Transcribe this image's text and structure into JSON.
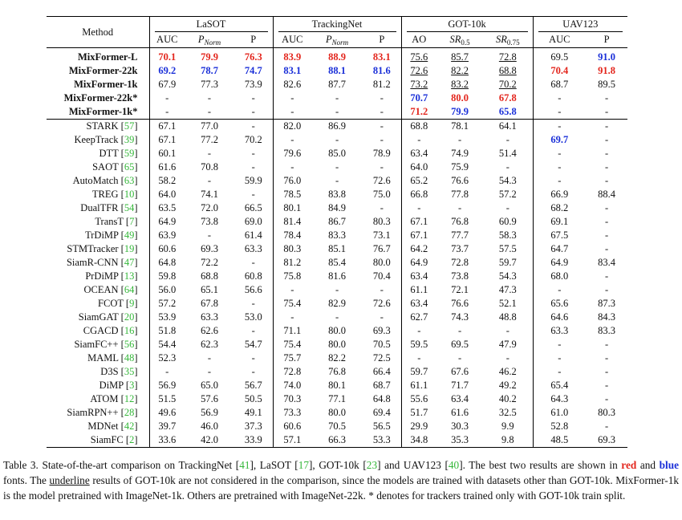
{
  "header": {
    "method": "Method",
    "groups": [
      "LaSOT",
      "TrackingNet",
      "GOT-10k",
      "UAV123"
    ],
    "lasot_cols": [
      "AUC",
      "P",
      "Norm",
      "P"
    ],
    "trackingnet_cols": [
      "AUC",
      "P",
      "Norm",
      "P"
    ],
    "got_cols": [
      "AO",
      "SR",
      "0.5",
      "SR",
      "0.75"
    ],
    "uav_cols": [
      "AUC",
      "P"
    ]
  },
  "rows": [
    {
      "name": "MixFormer-L",
      "cite": "",
      "vals": [
        "70.1",
        "79.9",
        "76.3",
        "83.9",
        "88.9",
        "83.1",
        "75.6",
        "85.7",
        "72.8",
        "69.5",
        "91.0"
      ],
      "st": [
        "r",
        "r",
        "r",
        "r",
        "r",
        "r",
        "u",
        "u",
        "u",
        "",
        "b"
      ]
    },
    {
      "name": "MixFormer-22k",
      "cite": "",
      "vals": [
        "69.2",
        "78.7",
        "74.7",
        "83.1",
        "88.1",
        "81.6",
        "72.6",
        "82.2",
        "68.8",
        "70.4",
        "91.8"
      ],
      "st": [
        "b",
        "b",
        "b",
        "b",
        "b",
        "b",
        "u",
        "u",
        "u",
        "r",
        "r"
      ]
    },
    {
      "name": "MixFormer-1k",
      "cite": "",
      "vals": [
        "67.9",
        "77.3",
        "73.9",
        "82.6",
        "87.7",
        "81.2",
        "73.2",
        "83.2",
        "70.2",
        "68.7",
        "89.5"
      ],
      "st": [
        "",
        "",
        "",
        "",
        "",
        "",
        "u",
        "u",
        "u",
        "",
        ""
      ]
    },
    {
      "name": "MixFormer-22k*",
      "cite": "",
      "vals": [
        "-",
        "-",
        "-",
        "-",
        "-",
        "-",
        "70.7",
        "80.0",
        "67.8",
        "-",
        "-"
      ],
      "st": [
        "",
        "",
        "",
        "",
        "",
        "",
        "b",
        "r",
        "r",
        "",
        ""
      ]
    },
    {
      "name": "MixFormer-1k*",
      "cite": "",
      "vals": [
        "-",
        "-",
        "-",
        "-",
        "-",
        "-",
        "71.2",
        "79.9",
        "65.8",
        "-",
        "-"
      ],
      "st": [
        "",
        "",
        "",
        "",
        "",
        "",
        "r",
        "b",
        "b",
        "",
        ""
      ]
    },
    {
      "name": "STARK",
      "cite": "57",
      "vals": [
        "67.1",
        "77.0",
        "-",
        "82.0",
        "86.9",
        "-",
        "68.8",
        "78.1",
        "64.1",
        "-",
        "-"
      ],
      "st": []
    },
    {
      "name": "KeepTrack",
      "cite": "39",
      "vals": [
        "67.1",
        "77.2",
        "70.2",
        "-",
        "-",
        "-",
        "-",
        "-",
        "-",
        "69.7",
        "-"
      ],
      "st": [
        "",
        "",
        "",
        "",
        "",
        "",
        "",
        "",
        "",
        "b",
        ""
      ]
    },
    {
      "name": "DTT",
      "cite": "59",
      "vals": [
        "60.1",
        "-",
        "-",
        "79.6",
        "85.0",
        "78.9",
        "63.4",
        "74.9",
        "51.4",
        "-",
        "-"
      ],
      "st": []
    },
    {
      "name": "SAOT",
      "cite": "65",
      "vals": [
        "61.6",
        "70.8",
        "-",
        "-",
        "-",
        "-",
        "64.0",
        "75.9",
        "-",
        "-",
        "-"
      ],
      "st": []
    },
    {
      "name": "AutoMatch",
      "cite": "63",
      "vals": [
        "58.2",
        "-",
        "59.9",
        "76.0",
        "-",
        "72.6",
        "65.2",
        "76.6",
        "54.3",
        "-",
        "-"
      ],
      "st": []
    },
    {
      "name": "TREG",
      "cite": "10",
      "vals": [
        "64.0",
        "74.1",
        "-",
        "78.5",
        "83.8",
        "75.0",
        "66.8",
        "77.8",
        "57.2",
        "66.9",
        "88.4"
      ],
      "st": []
    },
    {
      "name": "DualTFR",
      "cite": "54",
      "vals": [
        "63.5",
        "72.0",
        "66.5",
        "80.1",
        "84.9",
        "-",
        "-",
        "-",
        "-",
        "68.2",
        "-"
      ],
      "st": []
    },
    {
      "name": "TransT",
      "cite": "7",
      "vals": [
        "64.9",
        "73.8",
        "69.0",
        "81.4",
        "86.7",
        "80.3",
        "67.1",
        "76.8",
        "60.9",
        "69.1",
        "-"
      ],
      "st": []
    },
    {
      "name": "TrDiMP",
      "cite": "49",
      "vals": [
        "63.9",
        "-",
        "61.4",
        "78.4",
        "83.3",
        "73.1",
        "67.1",
        "77.7",
        "58.3",
        "67.5",
        "-"
      ],
      "st": []
    },
    {
      "name": "STMTracker",
      "cite": "19",
      "vals": [
        "60.6",
        "69.3",
        "63.3",
        "80.3",
        "85.1",
        "76.7",
        "64.2",
        "73.7",
        "57.5",
        "64.7",
        "-"
      ],
      "st": []
    },
    {
      "name": "SiamR-CNN",
      "cite": "47",
      "vals": [
        "64.8",
        "72.2",
        "-",
        "81.2",
        "85.4",
        "80.0",
        "64.9",
        "72.8",
        "59.7",
        "64.9",
        "83.4"
      ],
      "st": []
    },
    {
      "name": "PrDiMP",
      "cite": "13",
      "vals": [
        "59.8",
        "68.8",
        "60.8",
        "75.8",
        "81.6",
        "70.4",
        "63.4",
        "73.8",
        "54.3",
        "68.0",
        "-"
      ],
      "st": []
    },
    {
      "name": "OCEAN",
      "cite": "64",
      "vals": [
        "56.0",
        "65.1",
        "56.6",
        "-",
        "-",
        "-",
        "61.1",
        "72.1",
        "47.3",
        "-",
        "-"
      ],
      "st": []
    },
    {
      "name": "FCOT",
      "cite": "9",
      "vals": [
        "57.2",
        "67.8",
        "-",
        "75.4",
        "82.9",
        "72.6",
        "63.4",
        "76.6",
        "52.1",
        "65.6",
        "87.3"
      ],
      "st": []
    },
    {
      "name": "SiamGAT",
      "cite": "20",
      "vals": [
        "53.9",
        "63.3",
        "53.0",
        "-",
        "-",
        "-",
        "62.7",
        "74.3",
        "48.8",
        "64.6",
        "84.3"
      ],
      "st": []
    },
    {
      "name": "CGACD",
      "cite": "16",
      "vals": [
        "51.8",
        "62.6",
        "-",
        "71.1",
        "80.0",
        "69.3",
        "-",
        "-",
        "-",
        "63.3",
        "83.3"
      ],
      "st": []
    },
    {
      "name": "SiamFC++",
      "cite": "56",
      "vals": [
        "54.4",
        "62.3",
        "54.7",
        "75.4",
        "80.0",
        "70.5",
        "59.5",
        "69.5",
        "47.9",
        "-",
        "-"
      ],
      "st": []
    },
    {
      "name": "MAML",
      "cite": "48",
      "vals": [
        "52.3",
        "-",
        "-",
        "75.7",
        "82.2",
        "72.5",
        "-",
        "-",
        "-",
        "-",
        "-"
      ],
      "st": []
    },
    {
      "name": "D3S",
      "cite": "35",
      "vals": [
        "-",
        "-",
        "-",
        "72.8",
        "76.8",
        "66.4",
        "59.7",
        "67.6",
        "46.2",
        "-",
        "-"
      ],
      "st": []
    },
    {
      "name": "DiMP",
      "cite": "3",
      "vals": [
        "56.9",
        "65.0",
        "56.7",
        "74.0",
        "80.1",
        "68.7",
        "61.1",
        "71.7",
        "49.2",
        "65.4",
        "-"
      ],
      "st": []
    },
    {
      "name": "ATOM",
      "cite": "12",
      "vals": [
        "51.5",
        "57.6",
        "50.5",
        "70.3",
        "77.1",
        "64.8",
        "55.6",
        "63.4",
        "40.2",
        "64.3",
        "-"
      ],
      "st": []
    },
    {
      "name": "SiamRPN++",
      "cite": "28",
      "vals": [
        "49.6",
        "56.9",
        "49.1",
        "73.3",
        "80.0",
        "69.4",
        "51.7",
        "61.6",
        "32.5",
        "61.0",
        "80.3"
      ],
      "st": []
    },
    {
      "name": "MDNet",
      "cite": "42",
      "vals": [
        "39.7",
        "46.0",
        "37.3",
        "60.6",
        "70.5",
        "56.5",
        "29.9",
        "30.3",
        "9.9",
        "52.8",
        "-"
      ],
      "st": []
    },
    {
      "name": "SiamFC",
      "cite": "2",
      "vals": [
        "33.6",
        "42.0",
        "33.9",
        "57.1",
        "66.3",
        "53.3",
        "34.8",
        "35.3",
        "9.8",
        "48.5",
        "69.3"
      ],
      "st": []
    }
  ],
  "caption": {
    "t1": "Table 3. State-of-the-art comparison on TrackingNet [",
    "c1": "41",
    "t2": "], LaSOT [",
    "c2": "17",
    "t3": "], GOT-10k [",
    "c3": "23",
    "t4": "] and UAV123 [",
    "c4": "40",
    "t5": "]. The best two results are shown in ",
    "red_word": "red",
    "t6": " and ",
    "blue_word": "blue",
    "t7": " fonts. The ",
    "underline_word": "underline",
    "t8": " results of GOT-10k are not considered in the comparison, since the models are trained with datasets other than GOT-10k. MixFormer-1k is the model pretrained with ImageNet-1k. Others are pretrained with ImageNet-22k. * denotes for trackers trained only with GOT-10k train split.",
    "colors": {
      "red": "#e3251c",
      "blue": "#1a2fd8",
      "cite": "#35b73a"
    }
  }
}
